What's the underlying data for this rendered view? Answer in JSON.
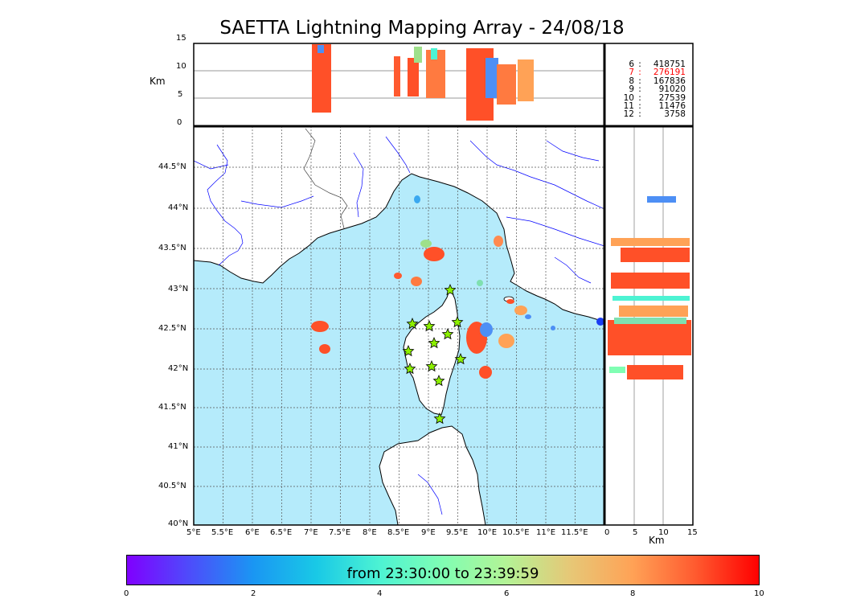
{
  "title": "SAETTA Lightning Mapping Array - 24/08/18",
  "altitude_panel": {
    "unit": "Km",
    "ticks": [
      "15",
      "10",
      "5",
      "0"
    ]
  },
  "map": {
    "lat_ticks": [
      "44.5°N",
      "44°N",
      "43.5°N",
      "43°N",
      "42.5°N",
      "42°N",
      "41.5°N",
      "41°N",
      "40.5°N",
      "40°N"
    ],
    "lon_ticks": [
      "5°E",
      "5.5°E",
      "6°E",
      "6.5°E",
      "7°E",
      "7.5°E",
      "8°E",
      "8.5°E",
      "9°E",
      "9.5°E",
      "10°E",
      "10.5°E",
      "11°E",
      "11.5°E"
    ],
    "colors": {
      "sea": "#b5ebfb",
      "land": "#ffffff",
      "coast": "#000000",
      "rivers": "#0000ff",
      "grid": "#555555"
    }
  },
  "side_panel": {
    "unit": "Km",
    "ticks": [
      "0",
      "5",
      "10",
      "15"
    ]
  },
  "station_counts": [
    {
      "stations": "6",
      "count": "418751",
      "color": "#000000"
    },
    {
      "stations": "7",
      "count": "276191",
      "color": "#ff0000"
    },
    {
      "stations": "8",
      "count": "167836",
      "color": "#000000"
    },
    {
      "stations": "9",
      "count": "91020",
      "color": "#000000"
    },
    {
      "stations": "10",
      "count": "27539",
      "color": "#000000"
    },
    {
      "stations": "11",
      "count": "11476",
      "color": "#000000"
    },
    {
      "stations": "12",
      "count": "3758",
      "color": "#000000"
    }
  ],
  "colorbar": {
    "label": "from 23:30:00 to 23:39:59",
    "ticks": [
      "0",
      "2",
      "4",
      "6",
      "8",
      "10"
    ],
    "min": 0,
    "max": 10
  }
}
